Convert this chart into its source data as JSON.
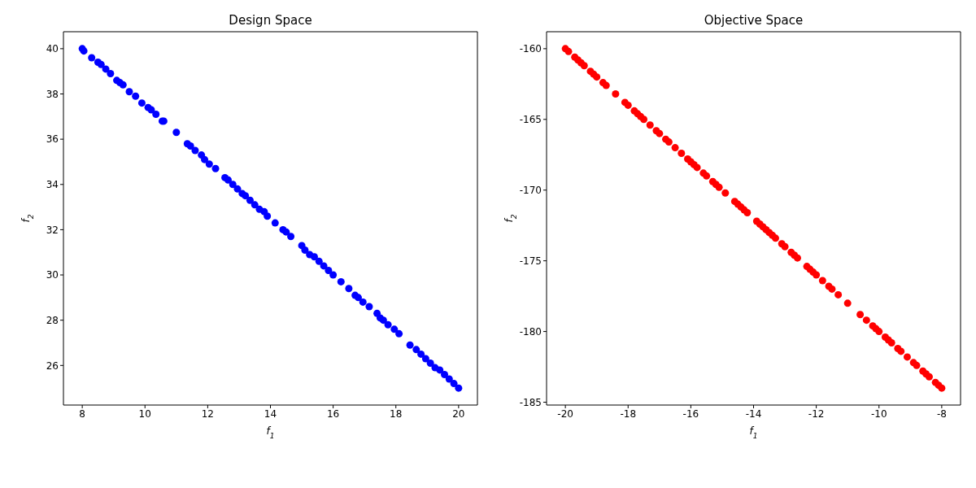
{
  "chart_data": [
    {
      "type": "scatter",
      "title": "Design Space",
      "xlabel": "f$_{1}$",
      "ylabel": "f$_{2}$",
      "marker": "circle",
      "grid": false,
      "xlim": [
        7.4,
        20.6
      ],
      "ylim": [
        24.25,
        40.75
      ],
      "xticks": [
        8,
        10,
        12,
        14,
        16,
        18,
        20
      ],
      "yticks": [
        26,
        28,
        30,
        32,
        34,
        36,
        38,
        40
      ],
      "series": [
        {
          "color": "#0000ff",
          "x": [
            8.0,
            8.05,
            8.3,
            8.5,
            8.6,
            8.75,
            8.9,
            9.1,
            9.2,
            9.3,
            9.5,
            9.7,
            9.9,
            10.1,
            10.2,
            10.35,
            10.55,
            10.6,
            11.0,
            11.35,
            11.45,
            11.6,
            11.8,
            11.9,
            12.05,
            12.25,
            12.55,
            12.65,
            12.8,
            12.95,
            13.1,
            13.2,
            13.35,
            13.5,
            13.65,
            13.8,
            13.9,
            14.15,
            14.4,
            14.5,
            14.65,
            15.0,
            15.1,
            15.25,
            15.4,
            15.55,
            15.7,
            15.85,
            16.0,
            16.25,
            16.5,
            16.7,
            16.8,
            16.95,
            17.15,
            17.4,
            17.5,
            17.6,
            17.75,
            17.95,
            18.1,
            18.45,
            18.65,
            18.8,
            18.95,
            19.1,
            19.25,
            19.4,
            19.55,
            19.7,
            19.85,
            20.0
          ],
          "values": [
            40.0,
            39.9,
            39.6,
            39.4,
            39.3,
            39.1,
            38.9,
            38.6,
            38.5,
            38.4,
            38.1,
            37.9,
            37.6,
            37.4,
            37.3,
            37.1,
            36.8,
            36.8,
            36.3,
            35.8,
            35.7,
            35.5,
            35.3,
            35.1,
            34.9,
            34.7,
            34.3,
            34.2,
            34.0,
            33.8,
            33.6,
            33.5,
            33.3,
            33.1,
            32.9,
            32.8,
            32.6,
            32.3,
            32.0,
            31.9,
            31.7,
            31.3,
            31.1,
            30.9,
            30.8,
            30.6,
            30.4,
            30.2,
            30.0,
            29.7,
            29.4,
            29.1,
            29.0,
            28.8,
            28.6,
            28.3,
            28.1,
            28.0,
            27.8,
            27.6,
            27.4,
            26.9,
            26.7,
            26.5,
            26.3,
            26.1,
            25.9,
            25.8,
            25.6,
            25.4,
            25.2,
            25.0
          ]
        }
      ]
    },
    {
      "type": "scatter",
      "title": "Objective Space",
      "xlabel": "f$_{1}$",
      "ylabel": "f$_{2}$",
      "marker": "circle",
      "grid": false,
      "xlim": [
        -20.6,
        -7.4
      ],
      "ylim": [
        -185.2,
        -158.8
      ],
      "xticks": [
        -20,
        -18,
        -16,
        -14,
        -12,
        -10,
        -8
      ],
      "yticks": [
        -185,
        -180,
        -175,
        -170,
        -165,
        -160
      ],
      "series": [
        {
          "color": "#ff0000",
          "x": [
            -20.0,
            -19.9,
            -19.7,
            -19.6,
            -19.5,
            -19.4,
            -19.2,
            -19.1,
            -19.0,
            -18.8,
            -18.7,
            -18.4,
            -18.1,
            -18.0,
            -17.8,
            -17.7,
            -17.6,
            -17.5,
            -17.3,
            -17.1,
            -17.0,
            -16.8,
            -16.7,
            -16.5,
            -16.3,
            -16.1,
            -16.0,
            -15.9,
            -15.8,
            -15.6,
            -15.5,
            -15.3,
            -15.2,
            -15.1,
            -14.9,
            -14.6,
            -14.5,
            -14.4,
            -14.3,
            -14.2,
            -13.9,
            -13.8,
            -13.7,
            -13.6,
            -13.5,
            -13.4,
            -13.3,
            -13.1,
            -13.0,
            -12.8,
            -12.7,
            -12.6,
            -12.3,
            -12.2,
            -12.1,
            -12.0,
            -11.8,
            -11.6,
            -11.5,
            -11.3,
            -11.0,
            -10.6,
            -10.4,
            -10.2,
            -10.1,
            -10.0,
            -9.8,
            -9.7,
            -9.6,
            -9.4,
            -9.3,
            -9.1,
            -8.9,
            -8.8,
            -8.6,
            -8.5,
            -8.4,
            -8.2,
            -8.1,
            -8.0
          ],
          "values": [
            -160,
            -160.2,
            -160.6,
            -160.8,
            -161,
            -161.2,
            -161.6,
            -161.8,
            -162,
            -162.4,
            -162.6,
            -163.2,
            -163.8,
            -164,
            -164.4,
            -164.6,
            -164.8,
            -165,
            -165.4,
            -165.8,
            -166,
            -166.4,
            -166.6,
            -167,
            -167.4,
            -167.8,
            -168,
            -168.2,
            -168.4,
            -168.8,
            -169,
            -169.4,
            -169.6,
            -169.8,
            -170.2,
            -170.8,
            -171,
            -171.2,
            -171.4,
            -171.6,
            -172.2,
            -172.4,
            -172.6,
            -172.8,
            -173,
            -173.2,
            -173.4,
            -173.8,
            -174,
            -174.4,
            -174.6,
            -174.8,
            -175.4,
            -175.6,
            -175.8,
            -176,
            -176.4,
            -176.8,
            -177,
            -177.4,
            -178,
            -178.8,
            -179.2,
            -179.6,
            -179.8,
            -180,
            -180.4,
            -180.6,
            -180.8,
            -181.2,
            -181.4,
            -181.8,
            -182.2,
            -182.4,
            -182.8,
            -183,
            -183.2,
            -183.6,
            -183.8,
            -184
          ]
        }
      ]
    }
  ]
}
